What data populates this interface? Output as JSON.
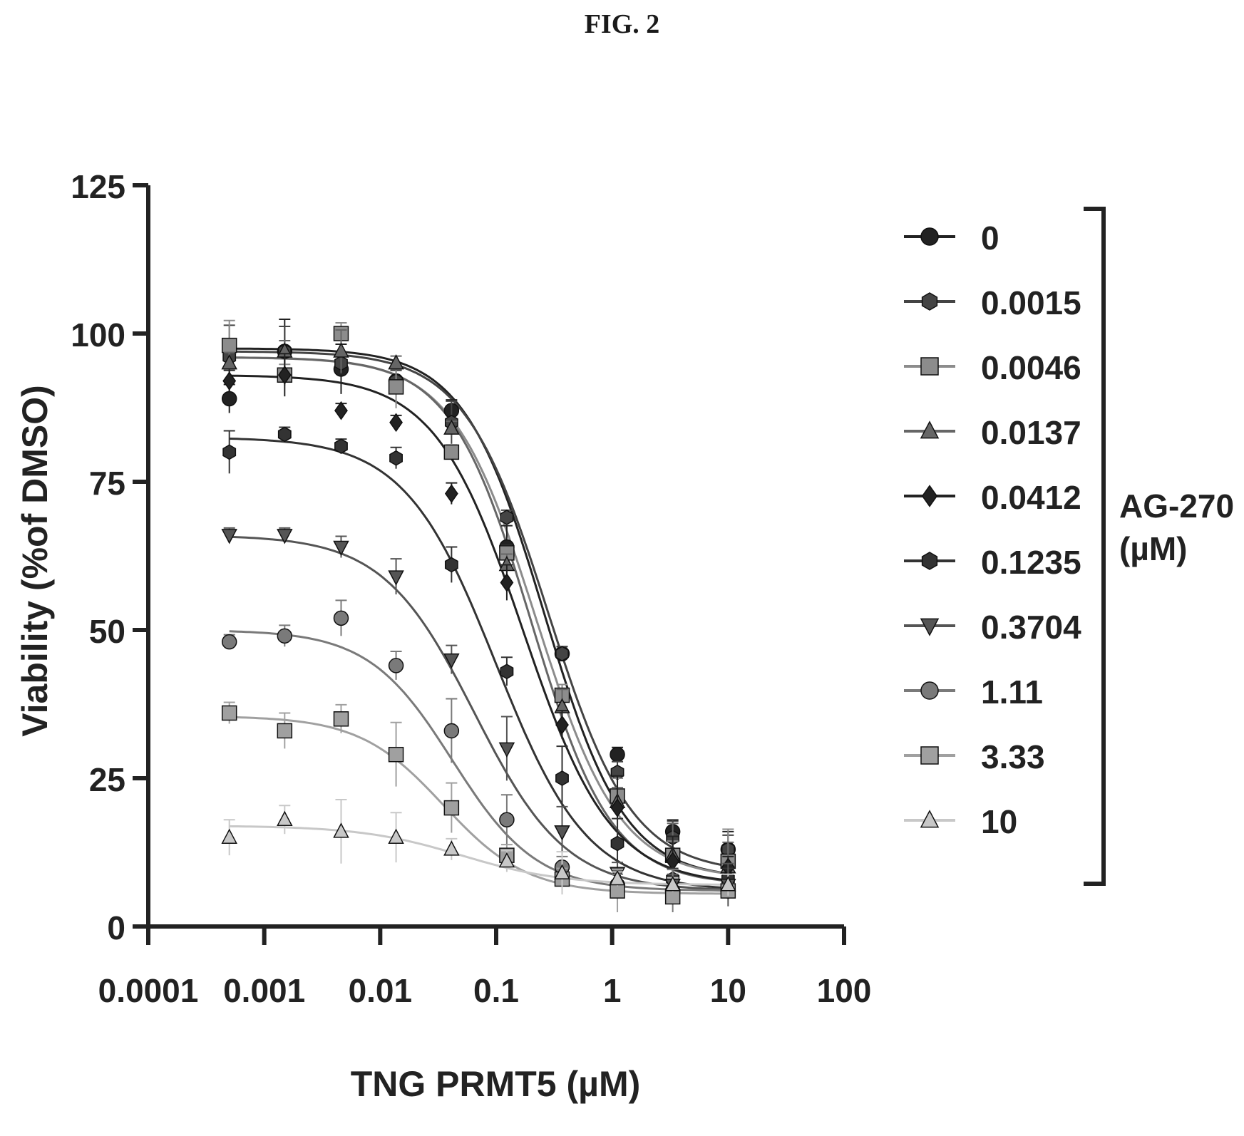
{
  "figure_title": "FIG. 2",
  "chart_data": {
    "type": "line",
    "title": "",
    "xlabel": "TNG PRMT5 (µM)",
    "ylabel": "Viability (%of DMSO)",
    "xscale": "log",
    "xlim": [
      0.0001,
      100
    ],
    "ylim": [
      0,
      125
    ],
    "x_ticks": [
      0.0001,
      0.001,
      0.01,
      0.1,
      1,
      10,
      100
    ],
    "x_tick_labels": [
      "0.0001",
      "0.001",
      "0.01",
      "0.1",
      "1",
      "10",
      "100"
    ],
    "y_ticks": [
      0,
      25,
      50,
      75,
      100,
      125
    ],
    "y_tick_labels": [
      "0",
      "25",
      "50",
      "75",
      "100",
      "125"
    ],
    "grid": false,
    "legend_title": "AG-270 (µM)",
    "legend_title_lines": [
      "AG-270",
      "(µM)"
    ],
    "legend_position": "right",
    "x": [
      0.0005,
      0.0015,
      0.0046,
      0.0137,
      0.0412,
      0.1235,
      0.3704,
      1.11,
      3.33,
      10
    ],
    "series": [
      {
        "name": "0",
        "marker": "circle",
        "color": "#222222",
        "values": [
          89,
          97,
          94,
          92,
          87,
          64,
          46,
          29,
          16,
          13
        ],
        "fit": {
          "top": 97.5,
          "bottom": 8,
          "ec50": 0.26,
          "hill": 1.25
        }
      },
      {
        "name": "0.0015",
        "marker": "hexagon",
        "color": "#444444",
        "values": [
          96,
          97,
          95,
          92,
          85,
          69,
          46,
          26,
          15,
          13
        ],
        "fit": {
          "top": 97,
          "bottom": 9,
          "ec50": 0.28,
          "hill": 1.2
        }
      },
      {
        "name": "0.0046",
        "marker": "square",
        "color": "#8c8c8c",
        "values": [
          98,
          93,
          100,
          91,
          80,
          63,
          39,
          22,
          12,
          11
        ],
        "fit": {
          "top": 96,
          "bottom": 8,
          "ec50": 0.22,
          "hill": 1.2
        }
      },
      {
        "name": "0.0137",
        "marker": "triangle-up",
        "color": "#666666",
        "values": [
          95,
          97,
          97,
          95,
          84,
          61,
          37,
          21,
          12,
          10
        ],
        "fit": {
          "top": 96,
          "bottom": 7,
          "ec50": 0.2,
          "hill": 1.25
        }
      },
      {
        "name": "0.0412",
        "marker": "diamond",
        "color": "#222222",
        "values": [
          92,
          93,
          87,
          85,
          73,
          58,
          34,
          20,
          11,
          10
        ],
        "fit": {
          "top": 93,
          "bottom": 7,
          "ec50": 0.17,
          "hill": 1.15
        }
      },
      {
        "name": "0.1235",
        "marker": "hexagon",
        "color": "#333333",
        "values": [
          80,
          83,
          81,
          79,
          61,
          43,
          25,
          14,
          8,
          8
        ],
        "fit": {
          "top": 82.5,
          "bottom": 6,
          "ec50": 0.1,
          "hill": 1.1
        }
      },
      {
        "name": "0.3704",
        "marker": "triangle-down",
        "color": "#555555",
        "values": [
          66,
          66,
          64,
          59,
          45,
          30,
          16,
          9,
          7,
          7
        ],
        "fit": {
          "top": 66,
          "bottom": 6,
          "ec50": 0.065,
          "hill": 1.1
        }
      },
      {
        "name": "1.11",
        "marker": "circle",
        "color": "#7a7a7a",
        "values": [
          48,
          49,
          52,
          44,
          33,
          18,
          10,
          7,
          6,
          6
        ],
        "fit": {
          "top": 50,
          "bottom": 6,
          "ec50": 0.042,
          "hill": 1.2
        }
      },
      {
        "name": "3.33",
        "marker": "square",
        "color": "#a0a0a0",
        "values": [
          36,
          33,
          35,
          29,
          20,
          12,
          8,
          6,
          5,
          6
        ],
        "fit": {
          "top": 35.5,
          "bottom": 5.5,
          "ec50": 0.035,
          "hill": 1.2
        }
      },
      {
        "name": "10",
        "marker": "triangle-up",
        "color": "#c8c8c8",
        "values": [
          15,
          18,
          16,
          15,
          13,
          11,
          9,
          8,
          7,
          7
        ],
        "fit": {
          "top": 17,
          "bottom": 7,
          "ec50": 0.05,
          "hill": 1.0
        }
      }
    ]
  }
}
